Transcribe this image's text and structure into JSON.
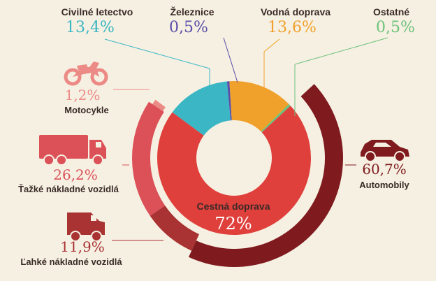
{
  "chart_data": {
    "type": "pie",
    "inner_donut": {
      "slices": [
        {
          "label": "Civilné letectvo",
          "value": "13,4%",
          "share": 13.4,
          "color": "#3ab6c4"
        },
        {
          "label": "Železnice",
          "value": "0,5%",
          "share": 0.5,
          "color": "#5a4ea8"
        },
        {
          "label": "Vodná doprava",
          "value": "13,6%",
          "share": 13.6,
          "color": "#f0a12c"
        },
        {
          "label": "Ostatné",
          "value": "0,5%",
          "share": 0.5,
          "color": "#6cc27a"
        },
        {
          "label": "Cestná doprava",
          "value": "72%",
          "share": 72,
          "color": "#e0403c"
        }
      ]
    },
    "outer_ring": {
      "slices": [
        {
          "label": "Automobily",
          "value": "60,7%",
          "share": 60.7,
          "color": "#7f1a1e",
          "icon": "car-icon"
        },
        {
          "label": "Ľahké nákladné vozidlá",
          "value": "11,9%",
          "share": 11.9,
          "color": "#a93232",
          "icon": "van-icon"
        },
        {
          "label": "Ťažké nákladné vozidlá",
          "value": "26,2%",
          "share": 26.2,
          "color": "#dc5058",
          "icon": "truck-icon"
        },
        {
          "label": "Motocykle",
          "value": "1,2%",
          "share": 1.2,
          "color": "#ec8a86",
          "icon": "motorcycle-icon"
        }
      ]
    }
  },
  "colors": {
    "background": "#f6f0e2",
    "label_text": "#3a2a28",
    "road_pct_text": "#ffffff"
  }
}
